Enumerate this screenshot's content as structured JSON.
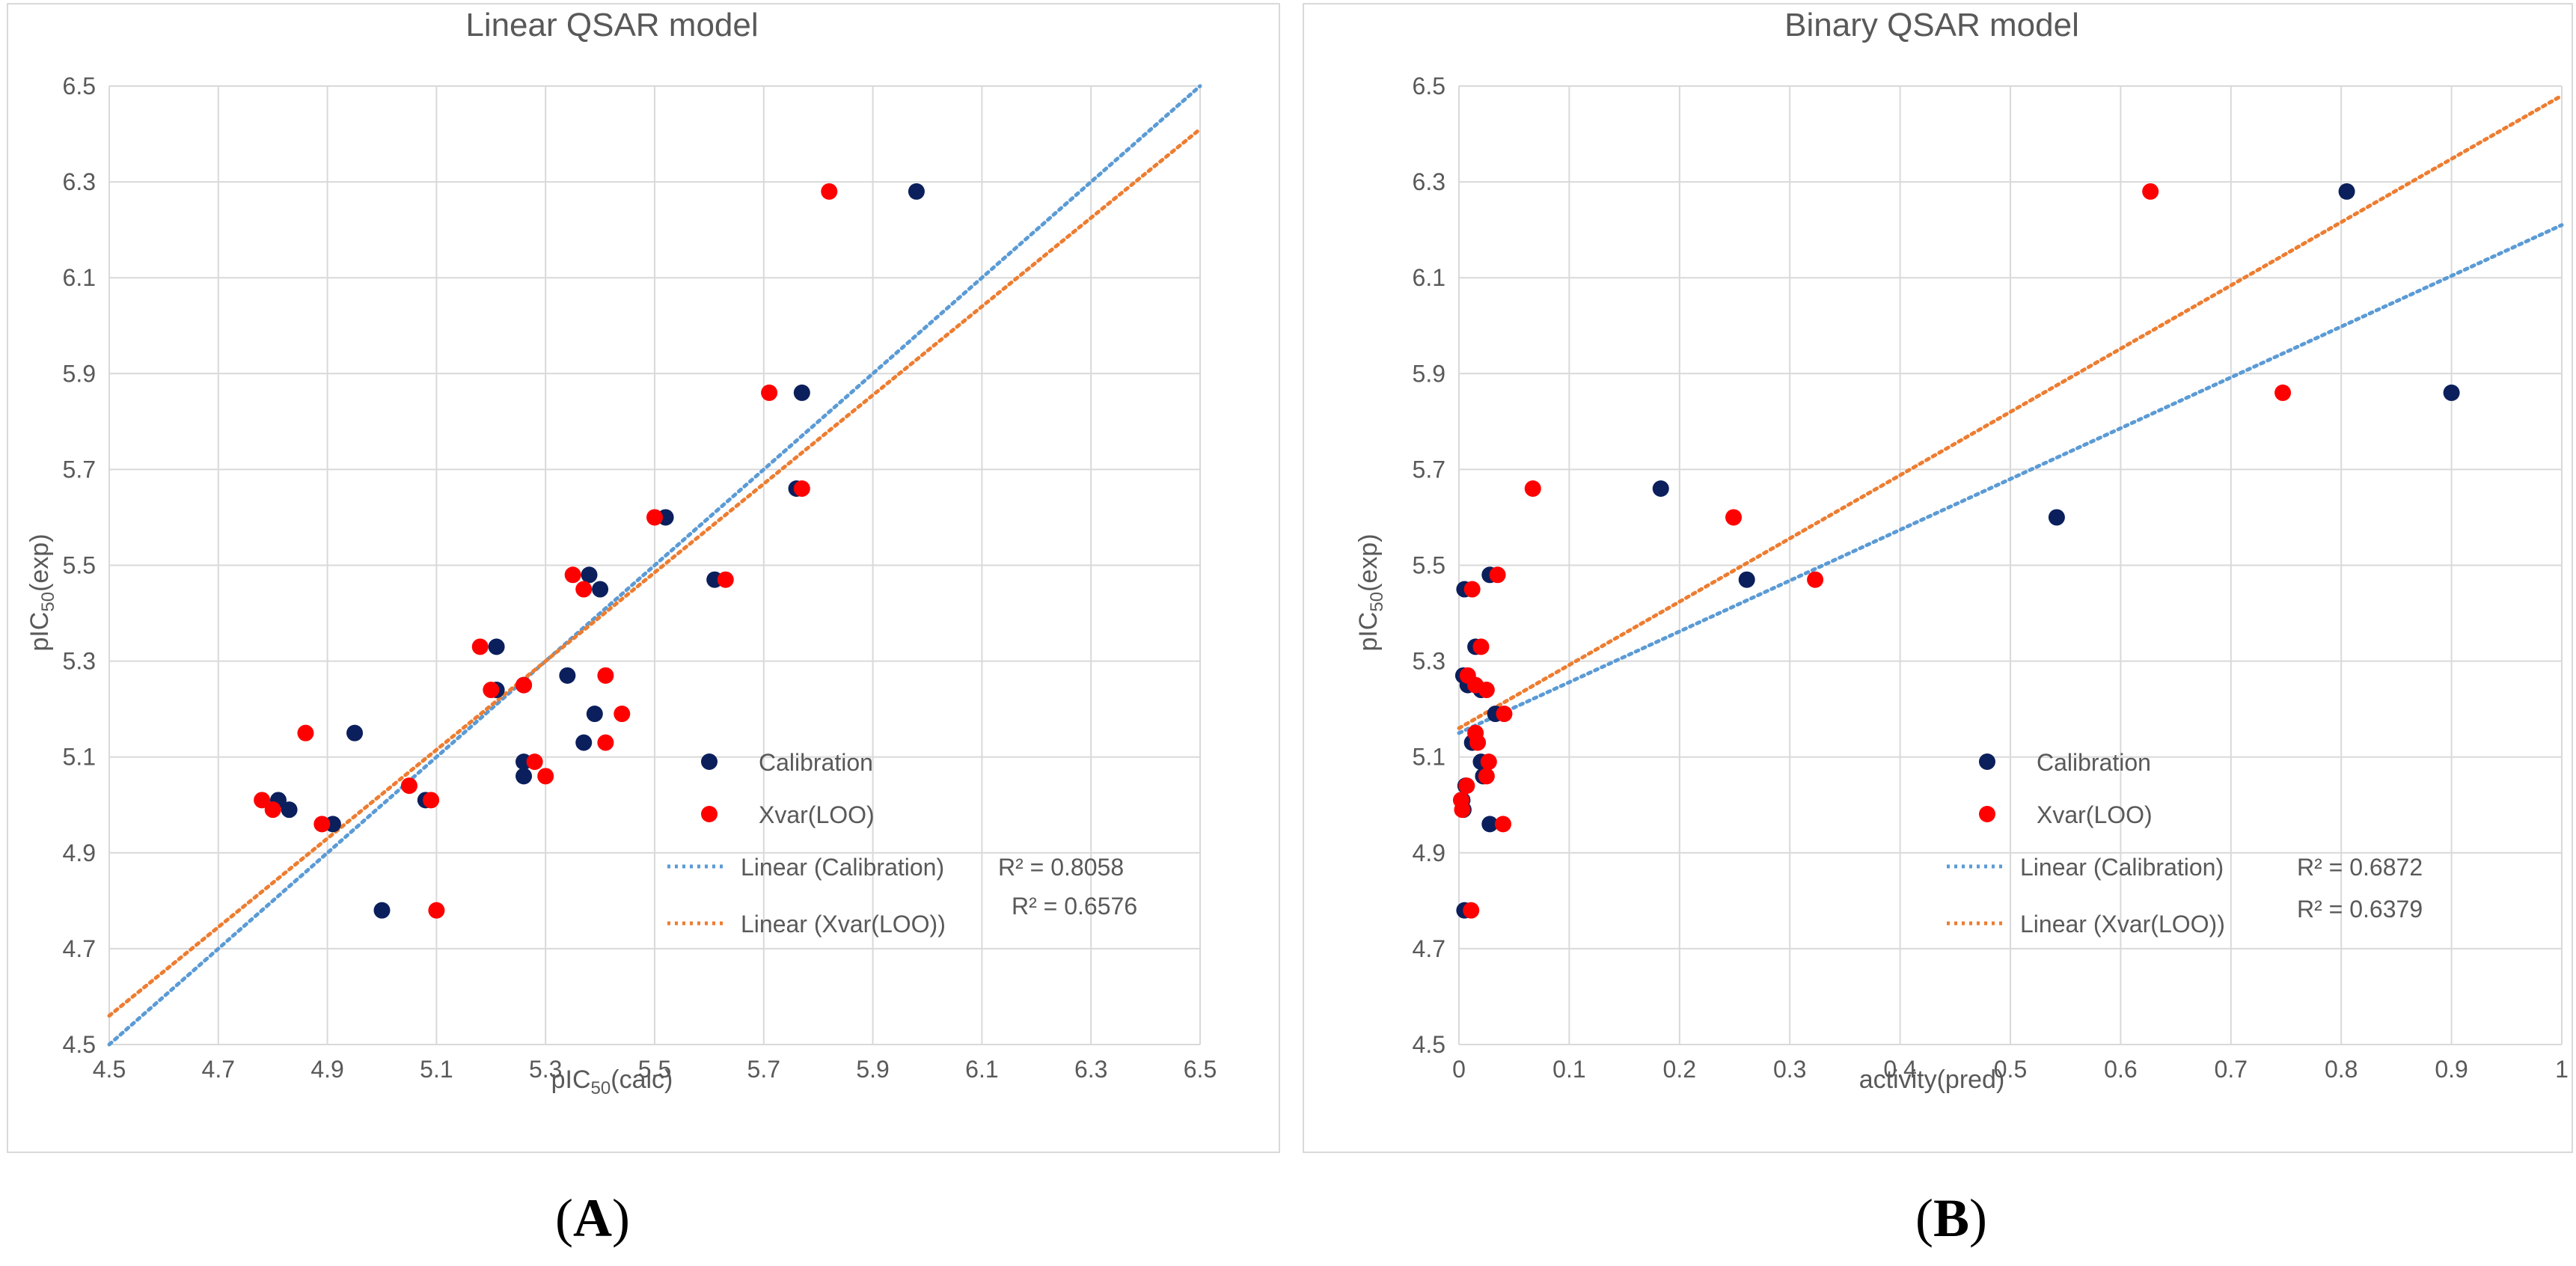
{
  "chart_data": [
    {
      "type": "scatter",
      "panel_label": "A",
      "title": "Linear QSAR model",
      "xlabel_main": "pIC",
      "xlabel_sub": "50",
      "xlabel_tail": "(calc)",
      "ylabel_main": "pIC",
      "ylabel_sub": "50",
      "ylabel_tail": "(exp)",
      "xlim": [
        4.5,
        6.5
      ],
      "ylim": [
        4.5,
        6.5
      ],
      "xticks": [
        "4.5",
        "4.7",
        "4.9",
        "5.1",
        "5.3",
        "5.5",
        "5.7",
        "5.9",
        "6.1",
        "6.3",
        "6.5"
      ],
      "yticks": [
        "4.5",
        "4.7",
        "4.9",
        "5.1",
        "5.3",
        "5.5",
        "5.7",
        "5.9",
        "6.1",
        "6.3",
        "6.5"
      ],
      "grid": true,
      "legend_position": "lower-right",
      "colors": {
        "calibration": "#0b1f5c",
        "xvar": "#ff0000",
        "calib_line": "#5b9bd5",
        "xvar_line": "#ed7d31"
      },
      "series": [
        {
          "name": "Calibration",
          "kind": "points",
          "points": [
            [
              5.98,
              6.28
            ],
            [
              5.77,
              5.86
            ],
            [
              5.76,
              5.66
            ],
            [
              5.52,
              5.6
            ],
            [
              5.61,
              5.47
            ],
            [
              5.38,
              5.48
            ],
            [
              5.4,
              5.45
            ],
            [
              5.21,
              5.33
            ],
            [
              5.21,
              5.24
            ],
            [
              5.26,
              5.25
            ],
            [
              5.34,
              5.27
            ],
            [
              5.39,
              5.19
            ],
            [
              5.37,
              5.13
            ],
            [
              5.26,
              5.09
            ],
            [
              5.26,
              5.06
            ],
            [
              4.95,
              5.15
            ],
            [
              4.81,
              5.01
            ],
            [
              4.83,
              4.99
            ],
            [
              4.91,
              4.96
            ],
            [
              5.08,
              5.01
            ],
            [
              5.0,
              4.78
            ]
          ]
        },
        {
          "name": "Xvar(LOO)",
          "kind": "points",
          "points": [
            [
              5.82,
              6.28
            ],
            [
              5.71,
              5.86
            ],
            [
              5.77,
              5.66
            ],
            [
              5.5,
              5.6
            ],
            [
              5.63,
              5.47
            ],
            [
              5.35,
              5.48
            ],
            [
              5.37,
              5.45
            ],
            [
              5.18,
              5.33
            ],
            [
              5.2,
              5.24
            ],
            [
              5.26,
              5.25
            ],
            [
              5.41,
              5.27
            ],
            [
              5.44,
              5.19
            ],
            [
              5.41,
              5.13
            ],
            [
              5.28,
              5.09
            ],
            [
              5.3,
              5.06
            ],
            [
              4.86,
              5.15
            ],
            [
              4.78,
              5.01
            ],
            [
              4.8,
              4.99
            ],
            [
              4.89,
              4.96
            ],
            [
              5.09,
              5.01
            ],
            [
              5.05,
              5.04
            ],
            [
              5.1,
              4.78
            ]
          ]
        },
        {
          "name": "Linear (Calibration)",
          "kind": "trend",
          "from": [
            4.5,
            4.5
          ],
          "to": [
            6.5,
            6.5
          ],
          "r2": "R² = 0.8058"
        },
        {
          "name": "Linear (Xvar(LOO))",
          "kind": "trend",
          "from": [
            4.5,
            4.56
          ],
          "to": [
            6.5,
            6.41
          ],
          "r2": "R² = 0.6576"
        }
      ]
    },
    {
      "type": "scatter",
      "panel_label": "B",
      "title": "Binary QSAR model",
      "xlabel_main": "activity(pred)",
      "xlabel_sub": "",
      "xlabel_tail": "",
      "ylabel_main": "pIC",
      "ylabel_sub": "50",
      "ylabel_tail": "(exp)",
      "xlim": [
        0,
        1
      ],
      "ylim": [
        4.5,
        6.5
      ],
      "xticks": [
        "0",
        "0.1",
        "0.2",
        "0.3",
        "0.4",
        "0.5",
        "0.6",
        "0.7",
        "0.8",
        "0.9",
        "1"
      ],
      "yticks": [
        "4.5",
        "4.7",
        "4.9",
        "5.1",
        "5.3",
        "5.5",
        "5.7",
        "5.9",
        "6.1",
        "6.3",
        "6.5"
      ],
      "grid": true,
      "legend_position": "lower-center",
      "colors": {
        "calibration": "#0b1f5c",
        "xvar": "#ff0000",
        "calib_line": "#5b9bd5",
        "xvar_line": "#ed7d31"
      },
      "series": [
        {
          "name": "Calibration",
          "kind": "points",
          "points": [
            [
              0.805,
              6.28
            ],
            [
              0.9,
              5.86
            ],
            [
              0.183,
              5.66
            ],
            [
              0.542,
              5.6
            ],
            [
              0.261,
              5.47
            ],
            [
              0.028,
              5.48
            ],
            [
              0.005,
              5.45
            ],
            [
              0.015,
              5.33
            ],
            [
              0.02,
              5.24
            ],
            [
              0.008,
              5.25
            ],
            [
              0.004,
              5.27
            ],
            [
              0.033,
              5.19
            ],
            [
              0.012,
              5.13
            ],
            [
              0.02,
              5.09
            ],
            [
              0.022,
              5.06
            ],
            [
              0.003,
              5.01
            ],
            [
              0.004,
              4.99
            ],
            [
              0.028,
              4.96
            ],
            [
              0.005,
              4.78
            ],
            [
              0.006,
              5.04
            ]
          ]
        },
        {
          "name": "Xvar(LOO)",
          "kind": "points",
          "points": [
            [
              0.627,
              6.28
            ],
            [
              0.747,
              5.86
            ],
            [
              0.067,
              5.66
            ],
            [
              0.249,
              5.6
            ],
            [
              0.323,
              5.47
            ],
            [
              0.035,
              5.48
            ],
            [
              0.012,
              5.45
            ],
            [
              0.02,
              5.33
            ],
            [
              0.025,
              5.24
            ],
            [
              0.015,
              5.25
            ],
            [
              0.008,
              5.27
            ],
            [
              0.041,
              5.19
            ],
            [
              0.017,
              5.13
            ],
            [
              0.027,
              5.09
            ],
            [
              0.025,
              5.06
            ],
            [
              0.002,
              5.01
            ],
            [
              0.003,
              4.99
            ],
            [
              0.04,
              4.96
            ],
            [
              0.011,
              4.78
            ],
            [
              0.007,
              5.04
            ],
            [
              0.015,
              5.15
            ]
          ]
        },
        {
          "name": "Linear (Calibration)",
          "kind": "trend",
          "from": [
            0,
            5.15
          ],
          "to": [
            1,
            6.21
          ],
          "r2": "R² = 0.6872"
        },
        {
          "name": "Linear (Xvar(LOO))",
          "kind": "trend",
          "from": [
            0,
            5.16
          ],
          "to": [
            1,
            6.48
          ],
          "r2": "R² = 0.6379"
        }
      ]
    }
  ]
}
